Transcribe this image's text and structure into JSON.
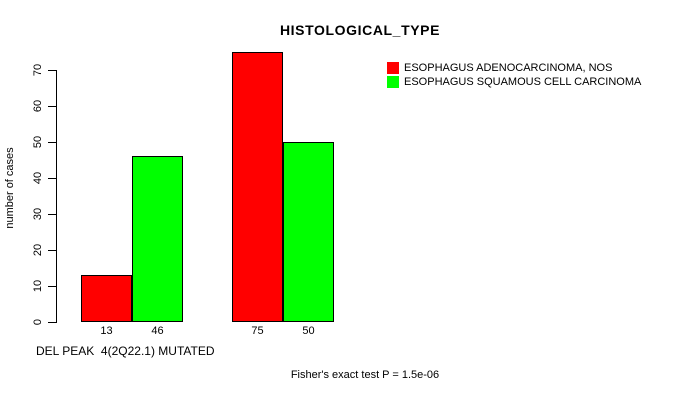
{
  "chart_data": {
    "type": "bar",
    "title": "HISTOLOGICAL_TYPE",
    "ylabel": "number of cases",
    "xlabel": "DEL PEAK  4(2Q22.1) MUTATED",
    "footer": "Fisher's exact test P = 1.5e-06",
    "ylim": [
      0,
      78
    ],
    "yticks": [
      0,
      10,
      20,
      30,
      40,
      50,
      60,
      70
    ],
    "grid": false,
    "legend_position": "top-right-inside",
    "groups": 2,
    "series": [
      {
        "name": "ESOPHAGUS ADENOCARCINOMA, NOS",
        "color": "#FF0000",
        "values": [
          13,
          75
        ]
      },
      {
        "name": "ESOPHAGUS SQUAMOUS CELL CARCINOMA",
        "color": "#00FF00",
        "values": [
          46,
          50
        ]
      }
    ],
    "bar_labels": [
      "13",
      "46",
      "75",
      "50"
    ],
    "colors": {
      "adenocarcinoma": "#FF0000",
      "squamous_cell": "#00FF00",
      "axis": "#000000",
      "background": "#FFFFFF"
    }
  }
}
